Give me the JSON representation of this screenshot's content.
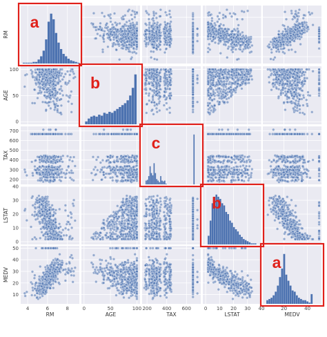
{
  "chart_data": {
    "type": "scatter",
    "subtype": "pair-plot",
    "variables": [
      "RM",
      "AGE",
      "TAX",
      "LSTAT",
      "MEDV"
    ],
    "axes": {
      "RM": {
        "range": [
          3.3,
          9.2
        ],
        "ticks": [
          4,
          6,
          8
        ]
      },
      "AGE": {
        "range": [
          -5,
          106
        ],
        "ticks": [
          0,
          50,
          100
        ]
      },
      "TAX": {
        "range": [
          150,
          745
        ],
        "ticks": [
          200,
          400,
          600
        ],
        "y_ticks": [
          200,
          300,
          400,
          500,
          600,
          700
        ]
      },
      "LSTAT": {
        "range": [
          -2,
          40
        ],
        "ticks": [
          0,
          10,
          20,
          30,
          40
        ]
      },
      "MEDV": {
        "range": [
          2,
          52
        ],
        "ticks": [
          20,
          40
        ],
        "y_ticks": [
          0,
          10,
          20,
          30,
          40,
          50
        ]
      }
    },
    "diagonal_histograms": [
      {
        "variable": "RM",
        "bin_start": 3.5,
        "bin_width": 0.25,
        "counts": [
          1,
          1,
          1,
          1,
          2,
          2,
          5,
          9,
          16,
          30,
          52,
          62,
          55,
          38,
          26,
          18,
          12,
          9,
          6,
          4,
          3,
          2,
          1
        ]
      },
      {
        "variable": "AGE",
        "bin_start": 2,
        "bin_width": 4.9,
        "counts": [
          3,
          6,
          8,
          9,
          8,
          10,
          9,
          12,
          11,
          13,
          12,
          14,
          16,
          18,
          20,
          22,
          25,
          30,
          38,
          52
        ]
      },
      {
        "variable": "TAX",
        "bin_start": 185,
        "bin_width": 13.5,
        "counts": [
          10,
          12,
          22,
          48,
          30,
          24,
          56,
          30,
          14,
          10,
          6,
          22,
          10,
          8,
          10,
          2,
          0,
          0,
          0,
          0,
          0,
          0,
          0,
          0,
          0,
          0,
          0,
          0,
          0,
          0,
          0,
          0,
          0,
          0,
          0,
          0,
          132,
          0,
          0,
          0
        ]
      },
      {
        "variable": "LSTAT",
        "bin_start": 1.5,
        "bin_width": 1.4,
        "counts": [
          8,
          22,
          38,
          44,
          46,
          44,
          42,
          38,
          36,
          30,
          28,
          22,
          20,
          16,
          14,
          12,
          9,
          7,
          5,
          4,
          3,
          2,
          1,
          1,
          1
        ]
      },
      {
        "variable": "MEDV",
        "bin_start": 5,
        "bin_width": 1.8,
        "counts": [
          6,
          8,
          10,
          14,
          20,
          30,
          44,
          58,
          82,
          48,
          38,
          30,
          22,
          20,
          14,
          10,
          8,
          6,
          6,
          4,
          2,
          16
        ]
      }
    ],
    "callouts": [
      {
        "cell": [
          0,
          0
        ],
        "label": "a"
      },
      {
        "cell": [
          1,
          1
        ],
        "label": "b"
      },
      {
        "cell": [
          2,
          2
        ],
        "label": "c"
      },
      {
        "cell": [
          3,
          3
        ],
        "label": "b"
      },
      {
        "cell": [
          4,
          4
        ],
        "label": "a"
      }
    ],
    "grid": true,
    "point_color": "#4c72b0",
    "bar_color": "#4c72b0",
    "panel_background": "#eaeaf2",
    "callout_color": "#e0201a"
  }
}
